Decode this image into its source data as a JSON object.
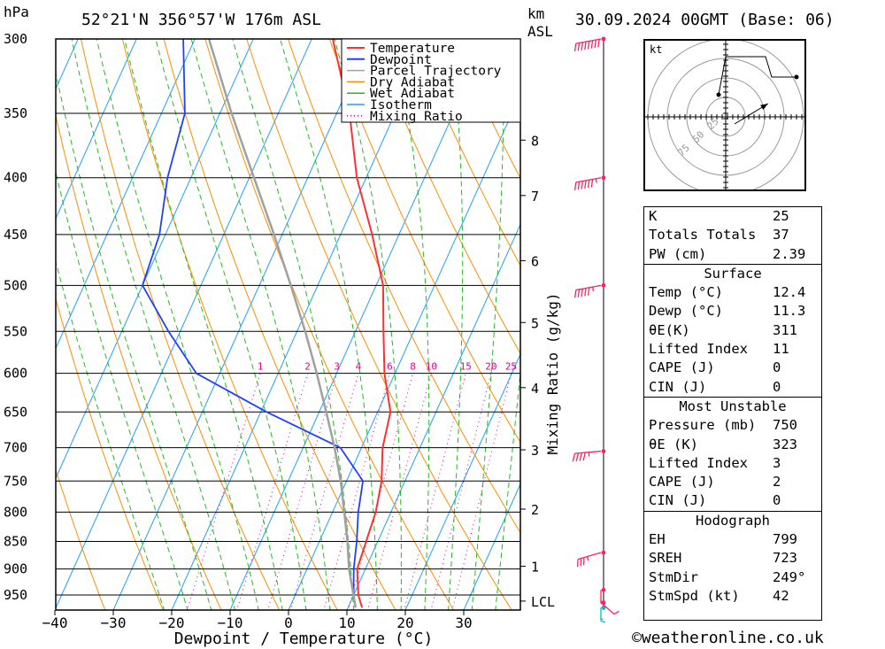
{
  "header": {
    "pressure_unit": "hPa",
    "location": "52°21'N  356°57'W  176m  ASL",
    "height_unit_top": "km",
    "height_unit_bottom": "ASL",
    "datetime": "30.09.2024  00GMT  (Base: 06)"
  },
  "chart_data": {
    "type": "line",
    "title": "",
    "xlabel": "Dewpoint / Temperature (°C)",
    "ylabel": "hPa",
    "y2label": "Mixing Ratio (g/kg)",
    "x_ticks": [
      -40,
      -30,
      -20,
      -10,
      0,
      10,
      20,
      30
    ],
    "xlim": [
      -40,
      40
    ],
    "ylim": [
      980,
      300
    ],
    "y_scale": "log",
    "skew": true,
    "pressure_ticks": [
      300,
      350,
      400,
      450,
      500,
      550,
      600,
      650,
      700,
      750,
      800,
      850,
      900,
      950
    ],
    "height_ticks": [
      {
        "label": "8",
        "p": 370
      },
      {
        "label": "7",
        "p": 415
      },
      {
        "label": "6",
        "p": 475
      },
      {
        "label": "5",
        "p": 540
      },
      {
        "label": "4",
        "p": 618
      },
      {
        "label": "3",
        "p": 703
      },
      {
        "label": "2",
        "p": 795
      },
      {
        "label": "1",
        "p": 895
      },
      {
        "label": "LCL",
        "p": 962
      }
    ],
    "mixing_ratio_labels": [
      "1",
      "2",
      "3",
      "4",
      "6",
      "8",
      "10",
      "15",
      "20",
      "25"
    ],
    "legend": [
      "Temperature",
      "Dewpoint",
      "Parcel Trajectory",
      "Dry Adiabat",
      "Wet Adiabat",
      "Isotherm",
      "Mixing Ratio"
    ],
    "legend_position": "top-right",
    "colors": {
      "temperature": "#ff3030",
      "dewpoint": "#2040ff",
      "parcel": "#a0a0a0",
      "dry_adiabat": "#ff8c00",
      "wet_adiabat": "#22bb22",
      "isotherm": "#1e9fff",
      "mixing_ratio": "#e0008c",
      "wind": "#ff2060"
    },
    "series": [
      {
        "name": "Temperature",
        "points": [
          [
            975,
            12.4
          ],
          [
            950,
            10.8
          ],
          [
            900,
            8.6
          ],
          [
            850,
            8.0
          ],
          [
            800,
            7.4
          ],
          [
            750,
            6.0
          ],
          [
            700,
            3.6
          ],
          [
            650,
            2.2
          ],
          [
            600,
            -1.8
          ],
          [
            550,
            -5.2
          ],
          [
            500,
            -8.8
          ],
          [
            450,
            -14.6
          ],
          [
            400,
            -21.6
          ],
          [
            350,
            -27.8
          ],
          [
            300,
            -36.4
          ]
        ]
      },
      {
        "name": "Dewpoint",
        "points": [
          [
            975,
            11.3
          ],
          [
            950,
            10.0
          ],
          [
            900,
            8.0
          ],
          [
            850,
            6.4
          ],
          [
            800,
            4.4
          ],
          [
            750,
            2.8
          ],
          [
            700,
            -3.6
          ],
          [
            650,
            -19.0
          ],
          [
            600,
            -34.0
          ],
          [
            550,
            -42.0
          ],
          [
            500,
            -50.0
          ],
          [
            450,
            -51.0
          ],
          [
            400,
            -54.0
          ],
          [
            350,
            -56.0
          ],
          [
            300,
            -62.0
          ]
        ]
      },
      {
        "name": "Parcel Trajectory",
        "points": [
          [
            975,
            11.3
          ],
          [
            900,
            7.2
          ],
          [
            850,
            4.8
          ],
          [
            800,
            2.0
          ],
          [
            750,
            -1.0
          ],
          [
            700,
            -4.6
          ],
          [
            650,
            -8.8
          ],
          [
            600,
            -13.4
          ],
          [
            550,
            -18.6
          ],
          [
            500,
            -24.6
          ],
          [
            450,
            -31.4
          ],
          [
            400,
            -39.2
          ],
          [
            350,
            -48.0
          ],
          [
            300,
            -57.6
          ]
        ]
      }
    ],
    "wind_barbs": [
      {
        "p": 975,
        "speed_kt": 15,
        "dir_deg": 180,
        "color": "#00bbbb"
      },
      {
        "p": 965,
        "speed_kt": 10,
        "dir_deg": 150
      },
      {
        "p": 940,
        "speed_kt": 15,
        "dir_deg": 180
      },
      {
        "p": 870,
        "speed_kt": 35,
        "dir_deg": 240
      },
      {
        "p": 705,
        "speed_kt": 45,
        "dir_deg": 260
      },
      {
        "p": 500,
        "speed_kt": 55,
        "dir_deg": 250
      },
      {
        "p": 400,
        "speed_kt": 65,
        "dir_deg": 250
      },
      {
        "p": 300,
        "speed_kt": 80,
        "dir_deg": 250
      }
    ],
    "hodograph": {
      "unit": "kt",
      "rings": [
        "25",
        "50",
        "75"
      ],
      "trace": [
        [
          -8,
          25
        ],
        [
          0,
          68
        ],
        [
          45,
          68
        ],
        [
          52,
          45
        ],
        [
          80,
          45
        ]
      ],
      "storm_motion": [
        [
          10,
          -8
        ],
        [
          48,
          15
        ]
      ]
    }
  },
  "indices": {
    "general": [
      {
        "label": "K",
        "value": "25"
      },
      {
        "label": "Totals Totals",
        "value": "37"
      },
      {
        "label": "PW (cm)",
        "value": "2.39"
      }
    ],
    "surface": {
      "title": "Surface",
      "rows": [
        {
          "label": "Temp (°C)",
          "value": "12.4"
        },
        {
          "label": "Dewp (°C)",
          "value": "11.3"
        },
        {
          "label": "θE(K)",
          "value": "311"
        },
        {
          "label": "Lifted Index",
          "value": "11"
        },
        {
          "label": "CAPE (J)",
          "value": "0"
        },
        {
          "label": "CIN (J)",
          "value": "0"
        }
      ]
    },
    "most_unstable": {
      "title": "Most Unstable",
      "rows": [
        {
          "label": "Pressure (mb)",
          "value": "750"
        },
        {
          "label": "θE (K)",
          "value": "323"
        },
        {
          "label": "Lifted Index",
          "value": "3"
        },
        {
          "label": "CAPE (J)",
          "value": "2"
        },
        {
          "label": "CIN (J)",
          "value": "0"
        }
      ]
    },
    "hodograph": {
      "title": "Hodograph",
      "rows": [
        {
          "label": "EH",
          "value": "799"
        },
        {
          "label": "SREH",
          "value": "723"
        },
        {
          "label": "StmDir",
          "value": "249°"
        },
        {
          "label": "StmSpd (kt)",
          "value": "42"
        }
      ]
    }
  },
  "footer": {
    "copyright_symbol": "©",
    "site": "weatheronline.co.uk"
  }
}
